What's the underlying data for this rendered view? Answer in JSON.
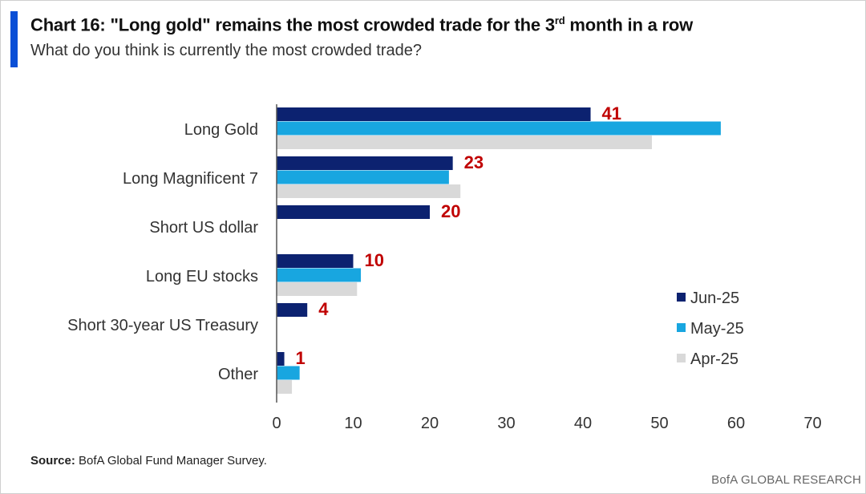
{
  "header": {
    "title_main": "Chart 16: \"Long gold\" remains the most crowded trade for the 3",
    "title_sup": "rd",
    "title_end": " month in a row",
    "subtitle": "What do you think is currently the most crowded trade?"
  },
  "footer": {
    "source_label": "Source:",
    "source_text": " BofA Global Fund Manager Survey.",
    "brand": "BofA GLOBAL RESEARCH"
  },
  "colors": {
    "accent": "#0a4fd6",
    "jun": "#0c2270",
    "may": "#18a6e0",
    "apr": "#d9d9d9",
    "label_red": "#c00000"
  },
  "chart_data": {
    "type": "bar",
    "orientation": "horizontal",
    "categories": [
      "Long Gold",
      "Long Magnificent 7",
      "Short US dollar",
      "Long EU stocks",
      "Short 30-year US Treasury",
      "Other"
    ],
    "series": [
      {
        "name": "Jun-25",
        "values": [
          41,
          23,
          20,
          10,
          4,
          1
        ]
      },
      {
        "name": "May-25",
        "values": [
          58,
          22.5,
          null,
          11,
          null,
          3
        ]
      },
      {
        "name": "Apr-25",
        "values": [
          49,
          24,
          null,
          10.5,
          null,
          2
        ]
      }
    ],
    "data_labels": [
      "41",
      "23",
      "20",
      "10",
      "4",
      "1"
    ],
    "xlim": [
      0,
      70
    ],
    "xticks": [
      "0",
      "10",
      "20",
      "30",
      "40",
      "50",
      "60",
      "70"
    ],
    "grid": false,
    "legend_position": "right"
  }
}
